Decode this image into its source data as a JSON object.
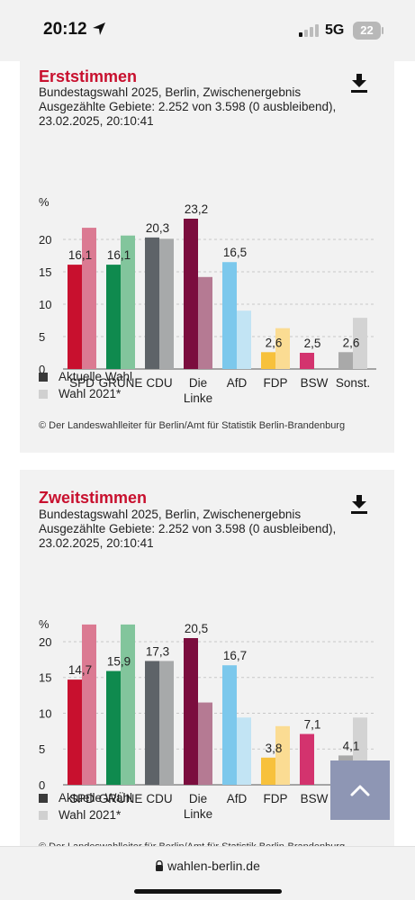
{
  "status": {
    "time": "20:12",
    "network": "5G",
    "battery": "22"
  },
  "browser": {
    "url": "wahlen-berlin.de"
  },
  "legend": {
    "current": "Aktuelle Wahl",
    "previous": "Wahl 2021*"
  },
  "credit": "© Der Landeswahlleiter für Berlin/Amt für Statistik Berlin-Brandenburg",
  "colors": {
    "SPD": "#c8102e",
    "SPD_prev": "#db7a92",
    "GRÜNE": "#0f8a4e",
    "GRÜNE_prev": "#82c59c",
    "CDU": "#5e6368",
    "CDU_prev": "#a7a9aa",
    "Die Linke": "#7b0d3e",
    "Die Linke_prev": "#b57a93",
    "AfD": "#7cc8ec",
    "AfD_prev": "#c2e4f4",
    "FDP": "#f7c13c",
    "FDP_prev": "#fbdc93",
    "BSW": "#d3336e",
    "BSW_prev": "#e89ab6",
    "Sonst.": "#a9a9a9",
    "Sonst._prev": "#d3d3d3",
    "legend_current": "#3a3a3a",
    "legend_previous": "#d0d0d0",
    "title": "#c8102e"
  },
  "charts": [
    {
      "title": "Erststimmen",
      "subtitle_line1": "Bundestagswahl 2025, Berlin, Zwischenergebnis",
      "subtitle_line2": "Ausgezählte Gebiete: 2.252 von 3.598 (0 ausbleibend),",
      "subtitle_line3": "23.02.2025, 20:10:41",
      "icon": "download-icon"
    },
    {
      "title": "Zweitstimmen",
      "subtitle_line1": "Bundestagswahl 2025, Berlin, Zwischenergebnis",
      "subtitle_line2": "Ausgezählte Gebiete: 2.252 von 3.598 (0 ausbleibend),",
      "subtitle_line3": "23.02.2025, 20:10:41",
      "icon": "download-icon"
    }
  ],
  "chart_data": [
    {
      "type": "bar",
      "title": "Erststimmen",
      "ylabel": "%",
      "ylim": [
        0,
        23.2
      ],
      "yticks": [
        0,
        5,
        10,
        15,
        20
      ],
      "grid": true,
      "categories": [
        "SPD",
        "GRÜNE",
        "CDU",
        "Die Linke",
        "AfD",
        "FDP",
        "BSW",
        "Sonst."
      ],
      "series": [
        {
          "name": "Aktuelle Wahl",
          "values": [
            16.1,
            16.1,
            20.3,
            23.2,
            16.5,
            2.6,
            2.5,
            2.6
          ],
          "labels": [
            "16,1",
            "16,1",
            "20,3",
            "23,2",
            "16,5",
            "2,6",
            "2,5",
            "2,6"
          ]
        },
        {
          "name": "Wahl 2021*",
          "values": [
            21.8,
            20.6,
            20.1,
            14.2,
            9.0,
            6.3,
            null,
            7.9
          ]
        }
      ]
    },
    {
      "type": "bar",
      "title": "Zweitstimmen",
      "ylabel": "%",
      "ylim": [
        0,
        20.5
      ],
      "yticks": [
        0,
        5,
        10,
        15,
        20
      ],
      "grid": true,
      "categories": [
        "SPD",
        "GRÜNE",
        "CDU",
        "Die Linke",
        "AfD",
        "FDP",
        "BSW",
        "Sonst."
      ],
      "series": [
        {
          "name": "Aktuelle Wahl",
          "values": [
            14.7,
            15.9,
            17.3,
            20.5,
            16.7,
            3.8,
            7.1,
            4.1
          ],
          "labels": [
            "14,7",
            "15,9",
            "17,3",
            "20,5",
            "16,7",
            "3,8",
            "7,1",
            "4,1"
          ]
        },
        {
          "name": "Wahl 2021*",
          "values": [
            22.4,
            22.4,
            17.3,
            11.5,
            9.4,
            8.2,
            null,
            9.4
          ]
        }
      ]
    }
  ]
}
